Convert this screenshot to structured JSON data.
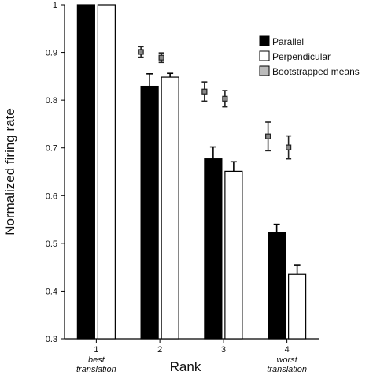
{
  "chart_data": {
    "type": "bar",
    "xlabel": "Rank",
    "ylabel": "Normalized firing rate",
    "ylim": [
      0.3,
      1.0
    ],
    "yticks": [
      "0.3",
      "0.4",
      "0.5",
      "0.6",
      "0.7",
      "0.8",
      "0.9",
      "1"
    ],
    "categories": [
      "1",
      "2",
      "3",
      "4"
    ],
    "category_sublabels": [
      [
        "best",
        "translation"
      ],
      null,
      null,
      [
        "worst",
        "translation"
      ]
    ],
    "series": [
      {
        "name": "Parallel",
        "color": "#000000",
        "values": [
          1.0,
          0.829,
          0.677,
          0.522
        ],
        "errors": [
          0.0,
          0.026,
          0.025,
          0.018
        ]
      },
      {
        "name": "Perpendicular",
        "color": "#ffffff",
        "values": [
          1.0,
          0.848,
          0.651,
          0.435
        ],
        "errors": [
          0.0,
          0.008,
          0.02,
          0.02
        ]
      }
    ],
    "bootstrapped_means": {
      "name": "Bootstrapped means",
      "color": "#888888",
      "points": [
        {
          "category": "2",
          "series": "Parallel",
          "value": 0.901,
          "error": 0.011
        },
        {
          "category": "2",
          "series": "Perpendicular",
          "value": 0.889,
          "error": 0.01
        },
        {
          "category": "3",
          "series": "Parallel",
          "value": 0.818,
          "error": 0.02
        },
        {
          "category": "3",
          "series": "Perpendicular",
          "value": 0.803,
          "error": 0.017
        },
        {
          "category": "4",
          "series": "Parallel",
          "value": 0.724,
          "error": 0.03
        },
        {
          "category": "4",
          "series": "Perpendicular",
          "value": 0.701,
          "error": 0.024
        }
      ]
    },
    "legend_position": "top-right",
    "grid": false
  }
}
